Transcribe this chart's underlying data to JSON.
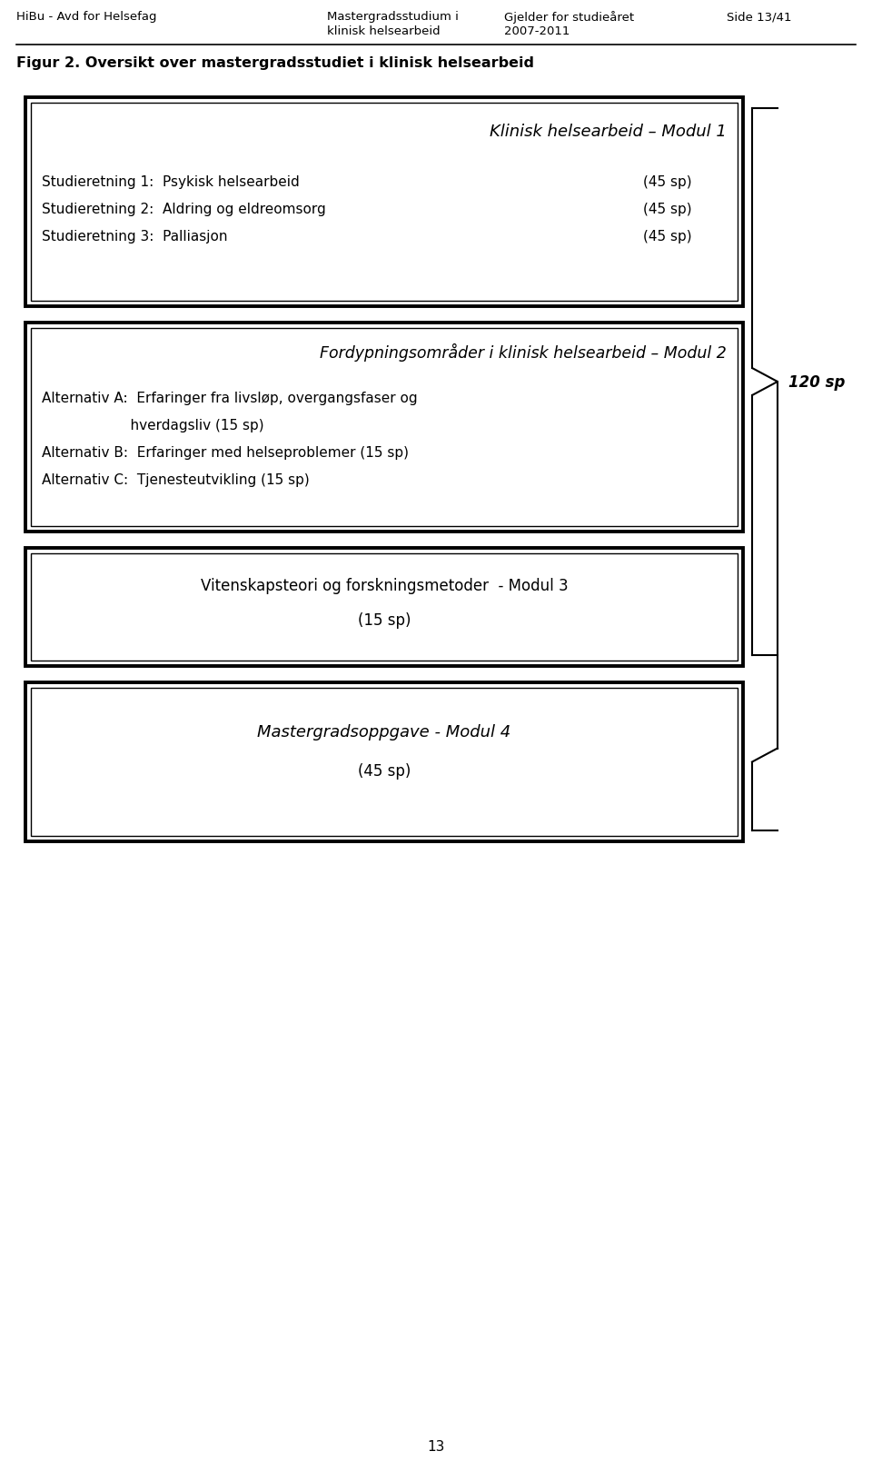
{
  "header_left": "HiBu - Avd for Helsefag",
  "header_center1": "Mastergradsstudium i",
  "header_center2": "klinisk helsearbeid",
  "header_right1": "Gjelder for studieåret",
  "header_right2": "2007-2011",
  "header_page": "Side 13/41",
  "fig_title": "Figur 2. Oversikt over mastergradsstudiet i klinisk helsearbeid",
  "box1_title": "Klinisk helsearbeid – Modul 1",
  "box1_lines": [
    [
      "Studieretning 1:  Psykisk helsearbeid",
      "(45 sp)"
    ],
    [
      "Studieretning 2:  Aldring og eldreomsorg",
      "(45 sp)"
    ],
    [
      "Studieretning 3:  Palliasjon",
      "(45 sp)"
    ]
  ],
  "box2_title": "Fordypningsområder i klinisk helsearbeid – Modul 2",
  "box2_lines_left": [
    "Alternativ A:  Erfaringer fra livsløp, overgangsfaser og",
    "                    hverdagsliv (15 sp)",
    "Alternativ B:  Erfaringer med helseproblemer (15 sp)",
    "Alternativ C:  Tjenesteutvikling (15 sp)"
  ],
  "bracket_label": "120 sp",
  "box3_line1": "Vitenskapsteori og forskningsmetoder  - Modul 3",
  "box3_line2": "(15 sp)",
  "box4_line1": "Mastergradsoppgave - Modul 4",
  "box4_line2": "(45 sp)",
  "page_number": "13",
  "bg_color": "#ffffff",
  "text_color": "#000000",
  "box_edge_color": "#000000"
}
